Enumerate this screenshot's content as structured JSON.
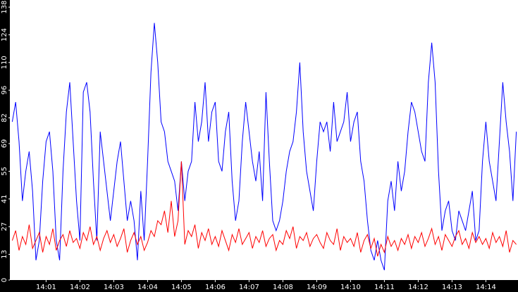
{
  "chart_data": {
    "type": "line",
    "x": [
      0,
      0.1,
      0.2,
      0.3,
      0.4,
      0.5,
      0.6,
      0.7,
      0.8,
      0.9,
      1,
      1.1,
      1.2,
      1.3,
      1.4,
      1.5,
      1.6,
      1.7,
      1.8,
      1.9,
      2,
      2.1,
      2.2,
      2.3,
      2.4,
      2.5,
      2.6,
      2.7,
      2.8,
      2.9,
      3,
      3.1,
      3.2,
      3.3,
      3.4,
      3.5,
      3.6,
      3.7,
      3.8,
      3.9,
      4,
      4.1,
      4.2,
      4.3,
      4.4,
      4.5,
      4.6,
      4.7,
      4.8,
      4.9,
      5,
      5.1,
      5.2,
      5.3,
      5.4,
      5.5,
      5.6,
      5.7,
      5.8,
      5.9,
      6,
      6.1,
      6.2,
      6.3,
      6.4,
      6.5,
      6.6,
      6.7,
      6.8,
      6.9,
      7,
      7.1,
      7.2,
      7.3,
      7.4,
      7.5,
      7.6,
      7.7,
      7.8,
      7.9,
      8,
      8.1,
      8.2,
      8.3,
      8.4,
      8.5,
      8.6,
      8.7,
      8.8,
      8.9,
      9,
      9.1,
      9.2,
      9.3,
      9.4,
      9.5,
      9.6,
      9.7,
      9.8,
      9.9,
      10,
      10.1,
      10.2,
      10.3,
      10.4,
      10.5,
      10.6,
      10.7,
      10.8,
      10.9,
      11,
      11.1,
      11.2,
      11.3,
      11.4,
      11.5,
      11.6,
      11.7,
      11.8,
      11.9,
      12,
      12.1,
      12.2,
      12.3,
      12.4,
      12.5,
      12.6,
      12.7,
      12.8,
      12.9,
      13,
      13.1,
      13.2,
      13.3,
      13.4,
      13.5,
      13.6,
      13.7,
      13.8,
      13.9,
      14,
      14.1,
      14.2,
      14.3,
      14.4,
      14.5,
      14.6,
      14.7,
      14.8,
      14.9
    ],
    "series": [
      {
        "color": "#0000ff",
        "values": [
          80,
          90,
          70,
          40,
          55,
          65,
          45,
          10,
          20,
          50,
          70,
          75,
          55,
          20,
          10,
          55,
          85,
          100,
          70,
          40,
          20,
          95,
          100,
          85,
          50,
          20,
          75,
          60,
          45,
          30,
          45,
          60,
          70,
          50,
          30,
          40,
          30,
          10,
          45,
          20,
          60,
          105,
          130,
          110,
          80,
          75,
          60,
          55,
          50,
          35,
          60,
          40,
          55,
          60,
          90,
          70,
          80,
          100,
          70,
          85,
          90,
          60,
          55,
          75,
          85,
          50,
          30,
          40,
          70,
          90,
          75,
          60,
          50,
          65,
          40,
          95,
          60,
          30,
          25,
          30,
          40,
          55,
          65,
          70,
          85,
          110,
          75,
          55,
          45,
          35,
          60,
          80,
          75,
          80,
          65,
          90,
          70,
          75,
          80,
          95,
          70,
          80,
          85,
          60,
          50,
          30,
          15,
          10,
          20,
          10,
          5,
          40,
          50,
          35,
          60,
          45,
          55,
          75,
          90,
          85,
          75,
          65,
          60,
          100,
          120,
          100,
          55,
          25,
          35,
          40,
          25,
          20,
          35,
          30,
          25,
          35,
          45,
          20,
          25,
          60,
          80,
          60,
          50,
          40,
          70,
          100,
          80,
          65,
          40,
          75
        ]
      },
      {
        "color": "#ff0000",
        "values": [
          20,
          25,
          15,
          22,
          18,
          28,
          16,
          20,
          24,
          14,
          22,
          18,
          26,
          15,
          20,
          23,
          17,
          25,
          19,
          21,
          16,
          24,
          20,
          27,
          18,
          22,
          15,
          21,
          25,
          19,
          23,
          17,
          21,
          26,
          14,
          20,
          24,
          18,
          22,
          15,
          19,
          25,
          22,
          30,
          28,
          35,
          24,
          40,
          22,
          30,
          60,
          18,
          25,
          22,
          28,
          16,
          24,
          20,
          26,
          18,
          22,
          17,
          25,
          20,
          15,
          23,
          19,
          26,
          18,
          21,
          24,
          16,
          22,
          19,
          25,
          17,
          21,
          23,
          15,
          20,
          18,
          25,
          21,
          27,
          16,
          22,
          20,
          24,
          17,
          21,
          23,
          19,
          16,
          24,
          20,
          18,
          26,
          15,
          22,
          19,
          21,
          17,
          24,
          14,
          20,
          23,
          16,
          21,
          12,
          18,
          14,
          22,
          17,
          20,
          15,
          21,
          18,
          23,
          16,
          22,
          19,
          24,
          17,
          21,
          26,
          18,
          22,
          15,
          23,
          20,
          17,
          22,
          25,
          18,
          21,
          16,
          24,
          19,
          22,
          18,
          21,
          16,
          24,
          19,
          22,
          17,
          25,
          14,
          20,
          18
        ]
      }
    ],
    "xlim": [
      -0.05,
      14.95
    ],
    "xticks": [
      {
        "value": 1,
        "label": "14:01"
      },
      {
        "value": 2,
        "label": "14:02"
      },
      {
        "value": 3,
        "label": "14:03"
      },
      {
        "value": 4,
        "label": "14:04"
      },
      {
        "value": 5,
        "label": "14:05"
      },
      {
        "value": 6,
        "label": "14:06"
      },
      {
        "value": 7,
        "label": "14:07"
      },
      {
        "value": 8,
        "label": "14:08"
      },
      {
        "value": 9,
        "label": "14:09"
      },
      {
        "value": 10,
        "label": "14:10"
      },
      {
        "value": 11,
        "label": "14:11"
      },
      {
        "value": 12,
        "label": "14:12"
      },
      {
        "value": 13,
        "label": "14:13"
      },
      {
        "value": 14,
        "label": "14:14"
      }
    ],
    "ylim": [
      0,
      141.6
    ],
    "yticks": [
      0,
      13,
      27,
      41,
      55,
      69,
      82,
      96,
      110,
      124,
      138
    ],
    "grid": false
  }
}
